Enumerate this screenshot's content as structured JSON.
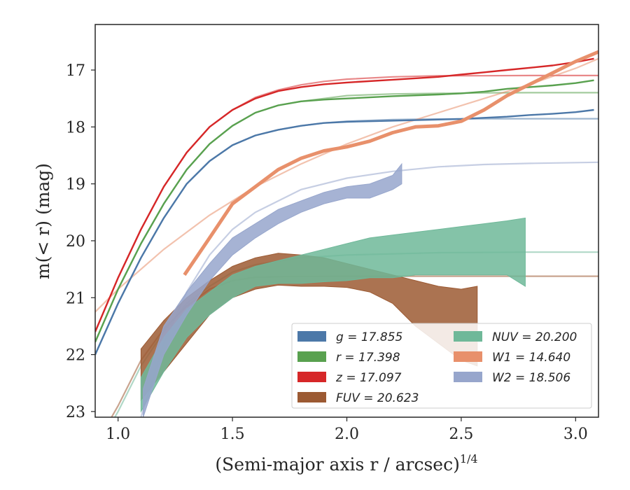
{
  "chart_data": {
    "type": "line",
    "xlabel": "(Semi-major axis r / arcsec)",
    "xlabel_var": "r",
    "xlabel_exp": "1/4",
    "ylabel": "m(< r) (mag)",
    "xlim": [
      0.9,
      3.1
    ],
    "ylim": [
      23.1,
      16.2
    ],
    "y_inverted": true,
    "x_ticks": [
      "1.0",
      "1.5",
      "2.0",
      "2.5",
      "3.0"
    ],
    "y_ticks": [
      "17",
      "18",
      "19",
      "20",
      "21",
      "22",
      "23"
    ],
    "grid": false,
    "legend_position": "lower-right",
    "series": [
      {
        "name": "g = 17.855",
        "var": "g",
        "value": "17.855",
        "color": "#4c78a8",
        "kind": "line",
        "x": [
          0.9,
          1.0,
          1.1,
          1.2,
          1.3,
          1.4,
          1.5,
          1.6,
          1.7,
          1.8,
          1.9,
          2.0,
          2.2,
          2.4,
          2.5,
          2.6,
          2.7,
          2.8,
          2.9,
          3.0,
          3.08
        ],
        "y": [
          22.0,
          21.1,
          20.3,
          19.6,
          19.0,
          18.6,
          18.32,
          18.15,
          18.05,
          17.98,
          17.93,
          17.91,
          17.89,
          17.87,
          17.86,
          17.84,
          17.82,
          17.79,
          17.77,
          17.74,
          17.7
        ]
      },
      {
        "name": "r = 17.398",
        "var": "r",
        "value": "17.398",
        "color": "#59a14f",
        "kind": "line",
        "x": [
          0.9,
          1.0,
          1.1,
          1.2,
          1.3,
          1.4,
          1.5,
          1.6,
          1.7,
          1.8,
          1.9,
          2.0,
          2.2,
          2.4,
          2.5,
          2.6,
          2.7,
          2.8,
          2.9,
          3.0,
          3.08
        ],
        "y": [
          21.78,
          20.85,
          20.05,
          19.35,
          18.75,
          18.3,
          17.98,
          17.75,
          17.62,
          17.55,
          17.52,
          17.5,
          17.46,
          17.43,
          17.41,
          17.38,
          17.33,
          17.3,
          17.27,
          17.23,
          17.18
        ]
      },
      {
        "name": "z = 17.097",
        "var": "z",
        "value": "17.097",
        "color": "#d62728",
        "kind": "line",
        "x": [
          0.9,
          1.0,
          1.1,
          1.2,
          1.3,
          1.4,
          1.5,
          1.6,
          1.7,
          1.8,
          1.9,
          2.0,
          2.2,
          2.4,
          2.5,
          2.6,
          2.7,
          2.8,
          2.9,
          3.0,
          3.08
        ],
        "y": [
          21.6,
          20.65,
          19.8,
          19.05,
          18.45,
          18.0,
          17.7,
          17.5,
          17.37,
          17.3,
          17.25,
          17.22,
          17.17,
          17.12,
          17.08,
          17.04,
          17.0,
          16.96,
          16.92,
          16.86,
          16.8
        ]
      },
      {
        "name": "FUV = 20.623",
        "var": "FUV",
        "value": "20.623",
        "color": "#9c5a33",
        "kind": "band",
        "x": [
          1.1,
          1.2,
          1.3,
          1.4,
          1.5,
          1.6,
          1.7,
          1.8,
          1.9,
          2.0,
          2.1,
          2.2,
          2.3,
          2.4,
          2.5,
          2.57
        ],
        "y_low": [
          22.8,
          22.3,
          21.8,
          21.3,
          21.0,
          20.85,
          20.78,
          20.8,
          20.8,
          20.82,
          20.9,
          21.1,
          21.5,
          21.8,
          22.1,
          22.2
        ],
        "y_high": [
          21.9,
          21.4,
          21.0,
          20.7,
          20.45,
          20.3,
          20.22,
          20.25,
          20.3,
          20.4,
          20.5,
          20.6,
          20.7,
          20.8,
          20.85,
          20.8
        ]
      },
      {
        "name": "NUV = 20.200",
        "var": "NUV",
        "value": "20.200",
        "color": "#6fb899",
        "kind": "band",
        "x": [
          1.1,
          1.2,
          1.3,
          1.4,
          1.5,
          1.6,
          1.7,
          1.8,
          1.9,
          2.0,
          2.1,
          2.2,
          2.3,
          2.4,
          2.5,
          2.6,
          2.7,
          2.78
        ],
        "y_low": [
          23.0,
          22.3,
          21.7,
          21.3,
          21.0,
          20.8,
          20.75,
          20.75,
          20.72,
          20.7,
          20.65,
          20.65,
          20.6,
          20.6,
          20.6,
          20.6,
          20.6,
          20.8
        ],
        "y_high": [
          22.4,
          21.7,
          21.2,
          20.9,
          20.6,
          20.45,
          20.35,
          20.25,
          20.15,
          20.05,
          19.95,
          19.9,
          19.85,
          19.8,
          19.75,
          19.7,
          19.65,
          19.6
        ]
      },
      {
        "name": "W1 = 14.640",
        "var": "W1",
        "value": "14.640",
        "color": "#e8906b",
        "kind": "thick-line",
        "x": [
          1.29,
          1.4,
          1.5,
          1.6,
          1.7,
          1.8,
          1.9,
          2.0,
          2.1,
          2.2,
          2.3,
          2.4,
          2.5,
          2.6,
          2.7,
          2.8,
          2.9,
          3.0,
          3.1
        ],
        "y": [
          20.6,
          19.95,
          19.35,
          19.05,
          18.75,
          18.55,
          18.42,
          18.35,
          18.25,
          18.1,
          18.0,
          17.98,
          17.9,
          17.7,
          17.45,
          17.25,
          17.05,
          16.85,
          16.68
        ]
      },
      {
        "name": "W2 = 18.506",
        "var": "W2",
        "value": "18.506",
        "color": "#97a6cc",
        "kind": "band",
        "x": [
          1.11,
          1.2,
          1.3,
          1.4,
          1.5,
          1.6,
          1.7,
          1.8,
          1.9,
          2.0,
          2.1,
          2.2,
          2.24
        ],
        "y_low": [
          23.1,
          22.0,
          21.3,
          20.7,
          20.25,
          19.95,
          19.7,
          19.5,
          19.35,
          19.25,
          19.25,
          19.1,
          19.0
        ],
        "y_high": [
          22.6,
          21.5,
          20.9,
          20.4,
          19.95,
          19.7,
          19.45,
          19.3,
          19.15,
          19.05,
          19.0,
          18.85,
          18.65
        ]
      }
    ],
    "model_curves": [
      {
        "for": "g",
        "color": "#4c78a8",
        "asymptote": 17.855,
        "x": [
          0.9,
          1.0,
          1.1,
          1.2,
          1.3,
          1.4,
          1.5,
          1.6,
          1.7,
          1.8,
          1.9,
          2.0,
          2.2,
          2.4,
          2.6,
          2.8,
          3.1
        ],
        "y": [
          22.0,
          21.1,
          20.3,
          19.6,
          19.0,
          18.6,
          18.32,
          18.15,
          18.05,
          17.98,
          17.93,
          17.9,
          17.87,
          17.86,
          17.855,
          17.855,
          17.855
        ]
      },
      {
        "for": "r",
        "color": "#59a14f",
        "asymptote": 17.398,
        "x": [
          0.9,
          1.0,
          1.1,
          1.2,
          1.3,
          1.4,
          1.5,
          1.6,
          1.7,
          1.8,
          1.9,
          2.0,
          2.2,
          2.4,
          2.6,
          2.8,
          3.1
        ],
        "y": [
          21.78,
          20.85,
          20.05,
          19.35,
          18.75,
          18.3,
          17.98,
          17.75,
          17.62,
          17.55,
          17.5,
          17.45,
          17.42,
          17.41,
          17.4,
          17.398,
          17.398
        ]
      },
      {
        "for": "z",
        "color": "#d62728",
        "asymptote": 17.097,
        "x": [
          0.9,
          1.0,
          1.1,
          1.2,
          1.3,
          1.4,
          1.5,
          1.6,
          1.7,
          1.8,
          1.9,
          2.0,
          2.2,
          2.4,
          2.6,
          2.8,
          3.1
        ],
        "y": [
          21.6,
          20.65,
          19.8,
          19.05,
          18.45,
          18.0,
          17.7,
          17.48,
          17.35,
          17.26,
          17.2,
          17.16,
          17.12,
          17.1,
          17.1,
          17.097,
          17.097
        ]
      },
      {
        "for": "FUV",
        "color": "#9c5a33",
        "asymptote": 20.623,
        "x": [
          0.9,
          1.0,
          1.1,
          1.2,
          1.3,
          1.4,
          1.5,
          1.6,
          1.8,
          2.0,
          2.4,
          2.8,
          3.1
        ],
        "y": [
          23.6,
          22.9,
          22.1,
          21.55,
          21.15,
          20.85,
          20.7,
          20.64,
          20.625,
          20.623,
          20.623,
          20.623,
          20.623
        ]
      },
      {
        "for": "NUV",
        "color": "#6fb899",
        "asymptote": 20.2,
        "x": [
          0.9,
          1.0,
          1.1,
          1.2,
          1.3,
          1.4,
          1.5,
          1.6,
          1.8,
          2.0,
          2.4,
          2.8,
          3.1
        ],
        "y": [
          23.7,
          23.0,
          22.2,
          21.6,
          21.1,
          20.8,
          20.55,
          20.42,
          20.3,
          20.25,
          20.21,
          20.2,
          20.2
        ]
      },
      {
        "for": "W1",
        "color": "#e8906b",
        "asymptote": 14.64,
        "x": [
          0.9,
          1.0,
          1.2,
          1.4,
          1.6,
          1.8,
          2.0,
          2.2,
          2.4,
          2.6,
          2.8,
          3.0,
          3.1
        ],
        "y": [
          21.25,
          20.85,
          20.15,
          19.55,
          19.05,
          18.65,
          18.3,
          18.0,
          17.75,
          17.5,
          17.25,
          16.97,
          16.8
        ]
      },
      {
        "for": "W2",
        "color": "#97a6cc",
        "asymptote": 18.506,
        "x": [
          1.1,
          1.2,
          1.3,
          1.4,
          1.5,
          1.6,
          1.8,
          2.0,
          2.2,
          2.4,
          2.6,
          2.8,
          3.1
        ],
        "y": [
          23.1,
          21.8,
          20.9,
          20.25,
          19.8,
          19.5,
          19.1,
          18.9,
          18.78,
          18.7,
          18.66,
          18.64,
          18.62
        ]
      }
    ]
  }
}
